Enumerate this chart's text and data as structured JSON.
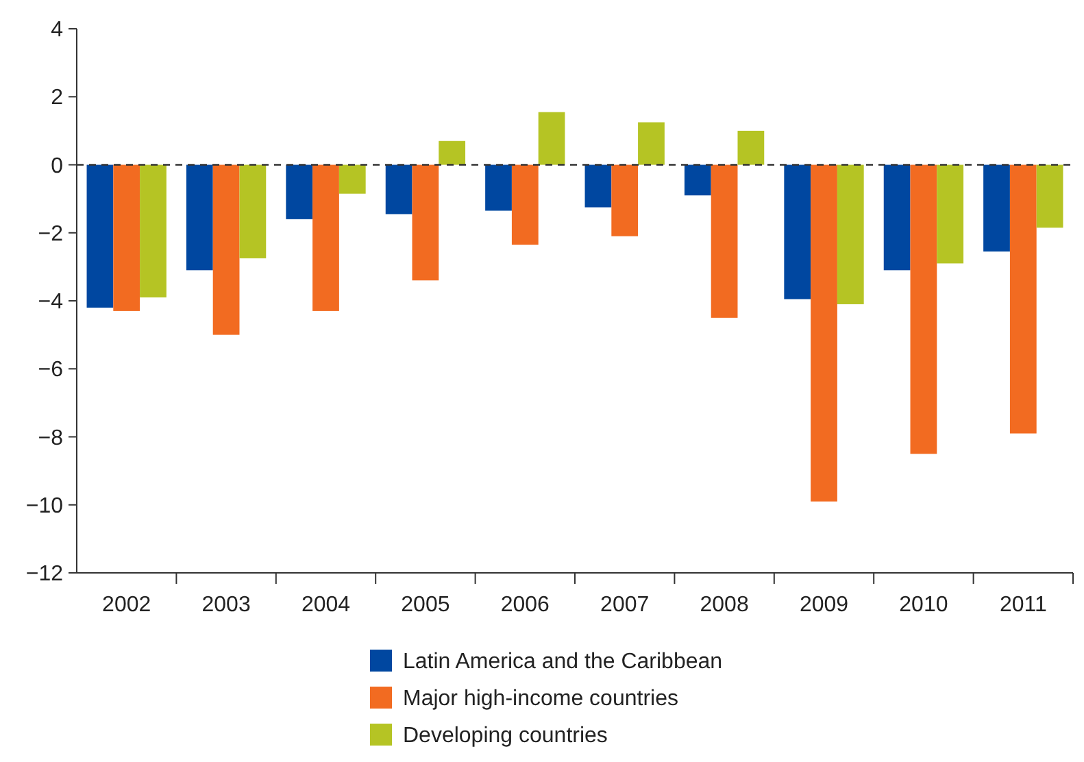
{
  "chart_data": {
    "type": "bar",
    "categories": [
      "2002",
      "2003",
      "2004",
      "2005",
      "2006",
      "2007",
      "2008",
      "2009",
      "2010",
      "2011"
    ],
    "series": [
      {
        "name": "Latin America and the Caribbean",
        "color": "#0047a0",
        "values": [
          -4.2,
          -3.1,
          -1.6,
          -1.45,
          -1.35,
          -1.25,
          -0.9,
          -3.95,
          -3.1,
          -2.55
        ]
      },
      {
        "name": "Major high-income countries",
        "color": "#f26b21",
        "values": [
          -4.3,
          -5.0,
          -4.3,
          -3.4,
          -2.35,
          -2.1,
          -4.5,
          -9.9,
          -8.5,
          -7.9
        ]
      },
      {
        "name": "Developing countries",
        "color": "#b5c424",
        "values": [
          -3.9,
          -2.75,
          -0.85,
          0.7,
          1.55,
          1.25,
          1.0,
          -4.1,
          -2.9,
          -1.85
        ]
      }
    ],
    "ylim": [
      -12,
      4
    ],
    "yticks": [
      {
        "value": -12,
        "label": "−12"
      },
      {
        "value": -10,
        "label": "−10"
      },
      {
        "value": -8,
        "label": "−8"
      },
      {
        "value": -6,
        "label": "−6"
      },
      {
        "value": -4,
        "label": "−4"
      },
      {
        "value": -2,
        "label": "−2"
      },
      0,
      2,
      4
    ],
    "ref_lines": [
      {
        "axis": "y",
        "value": 0,
        "color": "#333333",
        "line_style": "dashed"
      }
    ],
    "grid": false,
    "legend": "bottom"
  }
}
